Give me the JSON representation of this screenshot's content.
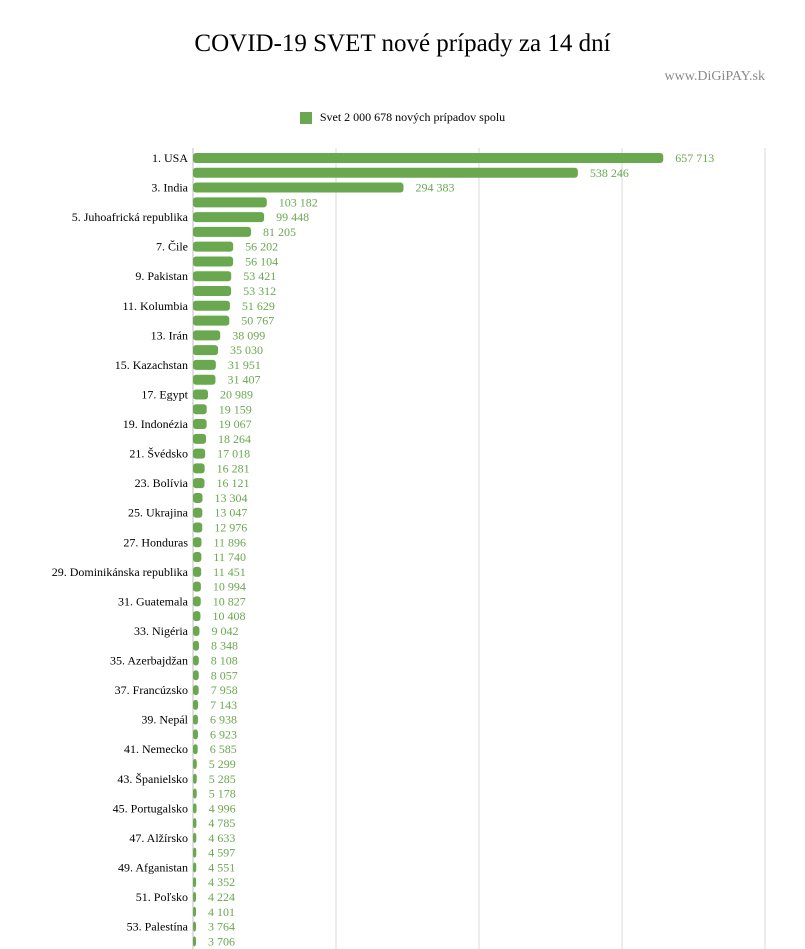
{
  "title": "COVID-19 SVET nové prípady za 14 dní",
  "watermark": "www.DiGiPAY.sk",
  "legend": {
    "label": "Svet 2 000 678 nových prípadov spolu",
    "color": "#6aa84f"
  },
  "chart_data": {
    "type": "bar",
    "orientation": "horizontal",
    "title": "COVID-19 SVET nové prípady za 14 dní",
    "xlim": [
      0,
      800000
    ],
    "grid": true,
    "legend_position": "top",
    "bar_color": "#6aa84f",
    "categories": [
      "1. USA",
      "",
      "3. India",
      "",
      "5. Juhoafrická republika",
      "",
      "7. Čile",
      "",
      "9. Pakistan",
      "",
      "11. Kolumbia",
      "",
      "13. Irán",
      "",
      "15. Kazachstan",
      "",
      "17. Egypt",
      "",
      "19. Indonézia",
      "",
      "21. Švédsko",
      "",
      "23. Bolívia",
      "",
      "25. Ukrajina",
      "",
      "27. Honduras",
      "",
      "29. Dominikánska republika",
      "",
      "31. Guatemala",
      "",
      "33. Nigéria",
      "",
      "35. Azerbajdžan",
      "",
      "37. Francúzsko",
      "",
      "39. Nepál",
      "",
      "41. Nemecko",
      "",
      "43. Španielsko",
      "",
      "45. Portugalsko",
      "",
      "47. Alžírsko",
      "",
      "49. Afganistan",
      "",
      "51. Poľsko",
      "",
      "53. Palestína",
      ""
    ],
    "values": [
      657713,
      538246,
      294383,
      103182,
      99448,
      81205,
      56202,
      56104,
      53421,
      53312,
      51629,
      50767,
      38099,
      35030,
      31951,
      31407,
      20989,
      19159,
      19067,
      18264,
      17018,
      16281,
      16121,
      13304,
      13047,
      12976,
      11896,
      11740,
      11451,
      10994,
      10827,
      10408,
      9042,
      8348,
      8108,
      8057,
      7958,
      7143,
      6938,
      6923,
      6585,
      5299,
      5285,
      5178,
      4996,
      4785,
      4633,
      4597,
      4551,
      4352,
      4224,
      4101,
      3764,
      3706
    ],
    "value_labels": [
      "657 713",
      "538 246",
      "294 383",
      "103 182",
      "99 448",
      "81 205",
      "56 202",
      "56 104",
      "53 421",
      "53 312",
      "51 629",
      "50 767",
      "38 099",
      "35 030",
      "31 951",
      "31 407",
      "20 989",
      "19 159",
      "19 067",
      "18 264",
      "17 018",
      "16 281",
      "16 121",
      "13 304",
      "13 047",
      "12 976",
      "11 896",
      "11 740",
      "11 451",
      "10 994",
      "10 827",
      "10 408",
      "9 042",
      "8 348",
      "8 108",
      "8 057",
      "7 958",
      "7 143",
      "6 938",
      "6 923",
      "6 585",
      "5 299",
      "5 285",
      "5 178",
      "4 996",
      "4 785",
      "4 633",
      "4 597",
      "4 551",
      "4 352",
      "4 224",
      "4 101",
      "3 764",
      "3 706"
    ]
  }
}
